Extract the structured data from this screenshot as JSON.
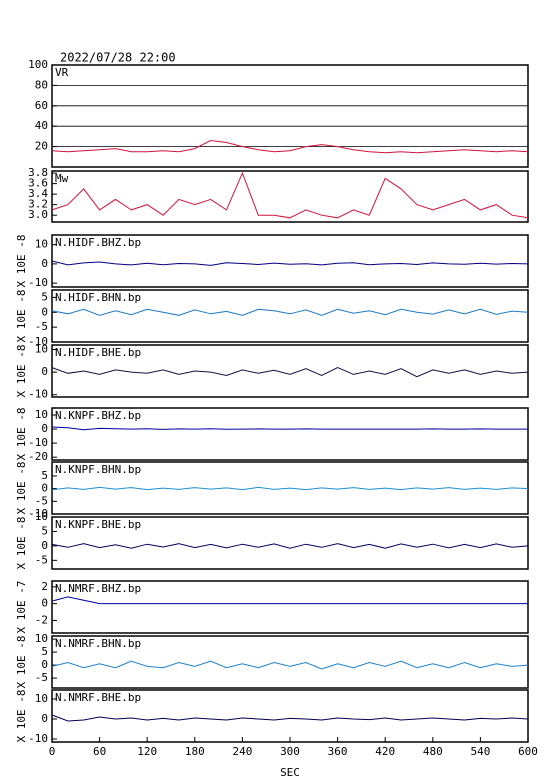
{
  "chart_data": [
    {
      "type": "line",
      "title": "2022/07/28 22:00",
      "label": "VR",
      "color": "#d0143c",
      "grid": true,
      "x": [
        0,
        20,
        40,
        60,
        80,
        100,
        120,
        140,
        160,
        180,
        200,
        220,
        240,
        260,
        280,
        300,
        320,
        340,
        360,
        380,
        400,
        420,
        440,
        460,
        480,
        500,
        520,
        540,
        560,
        580,
        600
      ],
      "values": [
        16,
        15,
        16,
        17,
        18,
        15,
        15,
        16,
        15,
        18,
        26,
        24,
        20,
        17,
        15,
        16,
        20,
        22,
        20,
        17,
        15,
        14,
        15,
        14,
        15,
        16,
        17,
        16,
        15,
        16,
        15
      ],
      "xlim": [
        0,
        600
      ],
      "ylim": [
        0,
        100
      ],
      "yticks": [
        20,
        40,
        60,
        80,
        100
      ]
    },
    {
      "type": "line",
      "label": "Mw",
      "color": "#d0143c",
      "x": [
        0,
        20,
        40,
        60,
        80,
        100,
        120,
        140,
        160,
        180,
        200,
        220,
        240,
        260,
        280,
        300,
        320,
        340,
        360,
        380,
        400,
        420,
        440,
        460,
        480,
        500,
        520,
        540,
        560,
        580,
        600
      ],
      "values": [
        3.1,
        3.2,
        3.5,
        3.1,
        3.3,
        3.1,
        3.2,
        3.0,
        3.3,
        3.2,
        3.3,
        3.1,
        3.8,
        3.0,
        3.0,
        2.95,
        3.1,
        3.0,
        2.95,
        3.1,
        3.0,
        3.7,
        3.5,
        3.2,
        3.1,
        3.2,
        3.3,
        3.1,
        3.2,
        3.0,
        2.95
      ],
      "xlim": [
        0,
        600
      ],
      "ylim": [
        2.87,
        3.84
      ],
      "yticks": [
        {
          "value": 3,
          "label": "3.0"
        },
        3.2,
        3.4,
        3.6,
        3.8
      ]
    },
    {
      "type": "line",
      "label": "N.HIDF.BHZ.bp",
      "ylabel": "X 10E -8",
      "color": "#000080",
      "x": [
        0,
        20,
        40,
        60,
        80,
        100,
        120,
        140,
        160,
        180,
        200,
        220,
        240,
        260,
        280,
        300,
        320,
        340,
        360,
        380,
        400,
        420,
        440,
        460,
        480,
        500,
        520,
        540,
        560,
        580,
        600
      ],
      "values": [
        1.5,
        -0.5,
        0.5,
        1,
        0,
        -0.5,
        0.3,
        -0.4,
        0.2,
        0,
        -0.8,
        0.6,
        0.2,
        -0.3,
        0.4,
        -0.2,
        0.1,
        -0.5,
        0.3,
        0.6,
        -0.4,
        0,
        0.2,
        -0.3,
        0.5,
        0,
        -0.2,
        0.3,
        -0.1,
        0.2,
        0
      ],
      "xlim": [
        0,
        600
      ],
      "ylim": [
        -12,
        15
      ],
      "yticks": [
        10,
        0,
        -10
      ]
    },
    {
      "type": "line",
      "label": "N.HIDF.BHN.bp",
      "ylabel": "X 10E -8",
      "color": "#1e78c8",
      "x": [
        0,
        20,
        40,
        60,
        80,
        100,
        120,
        140,
        160,
        180,
        200,
        220,
        240,
        260,
        280,
        300,
        320,
        340,
        360,
        380,
        400,
        420,
        440,
        460,
        480,
        500,
        520,
        540,
        560,
        580,
        600
      ],
      "values": [
        0.5,
        -0.5,
        1,
        -1,
        0.5,
        -0.8,
        1,
        0,
        -1,
        0.8,
        -0.5,
        0.3,
        -1,
        1,
        0.5,
        -0.5,
        0.8,
        -1,
        1,
        -0.3,
        0.5,
        -0.8,
        1,
        0,
        -0.6,
        0.8,
        -0.5,
        1,
        -0.7,
        0.4,
        0
      ],
      "xlim": [
        0,
        600
      ],
      "ylim": [
        -10,
        7.5
      ],
      "yticks": [
        5,
        0,
        -5,
        -10
      ]
    },
    {
      "type": "line",
      "label": "N.HIDF.BHE.bp",
      "ylabel": "X 10E -8",
      "color": "#101040",
      "x": [
        0,
        20,
        40,
        60,
        80,
        100,
        120,
        140,
        160,
        180,
        200,
        220,
        240,
        260,
        280,
        300,
        320,
        340,
        360,
        380,
        400,
        420,
        440,
        460,
        480,
        500,
        520,
        540,
        560,
        580,
        600
      ],
      "values": [
        2,
        -0.5,
        0.5,
        -1,
        1,
        0,
        -0.5,
        1,
        -1,
        0.5,
        0,
        -1.5,
        1,
        -0.5,
        0.8,
        -1,
        1.5,
        -1.5,
        2,
        -1,
        0.5,
        -1,
        1.5,
        -2,
        1,
        -0.5,
        1,
        -1,
        0.5,
        -0.5,
        0
      ],
      "xlim": [
        0,
        600
      ],
      "ylim": [
        -11,
        12
      ],
      "yticks": [
        10,
        0,
        -10
      ]
    },
    {
      "type": "line",
      "label": "N.KNPF.BHZ.bp",
      "ylabel": "X 10E -8",
      "color": "#0000a0",
      "x": [
        0,
        20,
        40,
        60,
        80,
        100,
        120,
        140,
        160,
        180,
        200,
        220,
        240,
        260,
        280,
        300,
        320,
        340,
        360,
        380,
        400,
        420,
        440,
        460,
        480,
        500,
        520,
        540,
        560,
        580,
        600
      ],
      "values": [
        1.5,
        1,
        -0.5,
        0.5,
        0.2,
        0,
        0.3,
        -0.2,
        0.1,
        0,
        0.2,
        -0.1,
        0,
        0.1,
        0,
        0,
        0.1,
        0,
        0,
        0,
        0,
        0,
        0,
        0,
        0.1,
        0,
        0,
        0.1,
        0,
        0,
        0
      ],
      "xlim": [
        0,
        600
      ],
      "ylim": [
        -22,
        15
      ],
      "yticks": [
        10,
        0,
        -10,
        -20
      ]
    },
    {
      "type": "line",
      "label": "N.KNPF.BHN.bp",
      "ylabel": "X 10E -8",
      "color": "#1e90d0",
      "x": [
        0,
        20,
        40,
        60,
        80,
        100,
        120,
        140,
        160,
        180,
        200,
        220,
        240,
        260,
        280,
        300,
        320,
        340,
        360,
        380,
        400,
        420,
        440,
        460,
        480,
        500,
        520,
        540,
        560,
        580,
        600
      ],
      "values": [
        -0.5,
        0.3,
        -0.3,
        0.5,
        -0.2,
        0.4,
        -0.4,
        0.2,
        -0.3,
        0.4,
        -0.2,
        0.3,
        -0.4,
        0.5,
        -0.3,
        0.2,
        -0.4,
        0.3,
        -0.2,
        0.4,
        -0.3,
        0.2,
        -0.4,
        0.3,
        -0.2,
        0.4,
        -0.3,
        0.2,
        -0.3,
        0.3,
        0
      ],
      "xlim": [
        0,
        600
      ],
      "ylim": [
        -10,
        10.5
      ],
      "yticks": [
        5,
        0,
        -5,
        -10
      ]
    },
    {
      "type": "line",
      "label": "N.KNPF.BHE.bp",
      "ylabel": "X 10E -8",
      "color": "#000060",
      "x": [
        0,
        20,
        40,
        60,
        80,
        100,
        120,
        140,
        160,
        180,
        200,
        220,
        240,
        260,
        280,
        300,
        320,
        340,
        360,
        380,
        400,
        420,
        440,
        460,
        480,
        500,
        520,
        540,
        560,
        580,
        600
      ],
      "values": [
        0.5,
        -0.5,
        0.8,
        -0.6,
        0.4,
        -0.8,
        0.6,
        -0.4,
        0.8,
        -0.6,
        0.5,
        -0.7,
        0.6,
        -0.5,
        0.7,
        -0.8,
        0.6,
        -0.5,
        0.8,
        -0.6,
        0.5,
        -0.8,
        0.7,
        -0.5,
        0.6,
        -0.7,
        0.5,
        -0.6,
        0.7,
        -0.5,
        0
      ],
      "xlim": [
        0,
        600
      ],
      "ylim": [
        -8,
        10
      ],
      "yticks": [
        10,
        5,
        0,
        -5
      ]
    },
    {
      "type": "line",
      "label": "N.NMRF.BHZ.bp",
      "ylabel": "X 10E -7",
      "color": "#0000a0",
      "x": [
        0,
        20,
        40,
        60,
        80,
        100,
        120,
        140,
        160,
        180,
        200,
        220,
        240,
        260,
        280,
        300,
        320,
        340,
        360,
        380,
        400,
        420,
        440,
        460,
        480,
        500,
        520,
        540,
        560,
        580,
        600
      ],
      "values": [
        0.3,
        0.8,
        0.4,
        0,
        0,
        0,
        0,
        0,
        0,
        0,
        0,
        0,
        0,
        0,
        0,
        0,
        0,
        0,
        0,
        0,
        0,
        0,
        0,
        0,
        0,
        0,
        0,
        0,
        0,
        0,
        0
      ],
      "xlim": [
        0,
        600
      ],
      "ylim": [
        -3.5,
        2.7
      ],
      "yticks": [
        2,
        0,
        -2
      ]
    },
    {
      "type": "line",
      "label": "N.NMRF.BHN.bp",
      "ylabel": "X 10E -8",
      "color": "#1e80d0",
      "x": [
        0,
        20,
        40,
        60,
        80,
        100,
        120,
        140,
        160,
        180,
        200,
        220,
        240,
        260,
        280,
        300,
        320,
        340,
        360,
        380,
        400,
        420,
        440,
        460,
        480,
        500,
        520,
        540,
        560,
        580,
        600
      ],
      "values": [
        -0.5,
        1,
        -1,
        0.5,
        -1,
        1.5,
        -0.5,
        -1,
        1,
        -0.5,
        1.5,
        -1,
        0.5,
        -1,
        1,
        -0.5,
        1,
        -1.5,
        0.5,
        -1,
        1,
        -0.5,
        1.5,
        -1,
        0.5,
        -1,
        1,
        -1,
        0.5,
        -0.5,
        0
      ],
      "xlim": [
        0,
        600
      ],
      "ylim": [
        -8.8,
        11.2
      ],
      "yticks": [
        10,
        5,
        0,
        -5
      ]
    },
    {
      "type": "line",
      "label": "N.NMRF.BHE.bp",
      "ylabel": "X 10E -8",
      "color": "#000050",
      "xlabel": "SEC",
      "x": [
        0,
        20,
        40,
        60,
        80,
        100,
        120,
        140,
        160,
        180,
        200,
        220,
        240,
        260,
        280,
        300,
        320,
        340,
        360,
        380,
        400,
        420,
        440,
        460,
        480,
        500,
        520,
        540,
        560,
        580,
        600
      ],
      "values": [
        2,
        -1,
        -0.5,
        1,
        0,
        0.5,
        -0.5,
        0.3,
        -0.5,
        0.5,
        0,
        -0.5,
        0.5,
        0,
        -0.5,
        0.3,
        0,
        -0.5,
        0.5,
        0,
        -0.3,
        0.5,
        -0.5,
        0,
        0.5,
        0,
        -0.5,
        0.3,
        0,
        0.5,
        0
      ],
      "xlim": [
        0,
        600
      ],
      "ylim": [
        -11.5,
        14.5
      ],
      "yticks": [
        10,
        0,
        -10
      ],
      "xticks": [
        0,
        60,
        120,
        180,
        240,
        300,
        360,
        420,
        480,
        540,
        600
      ]
    }
  ]
}
